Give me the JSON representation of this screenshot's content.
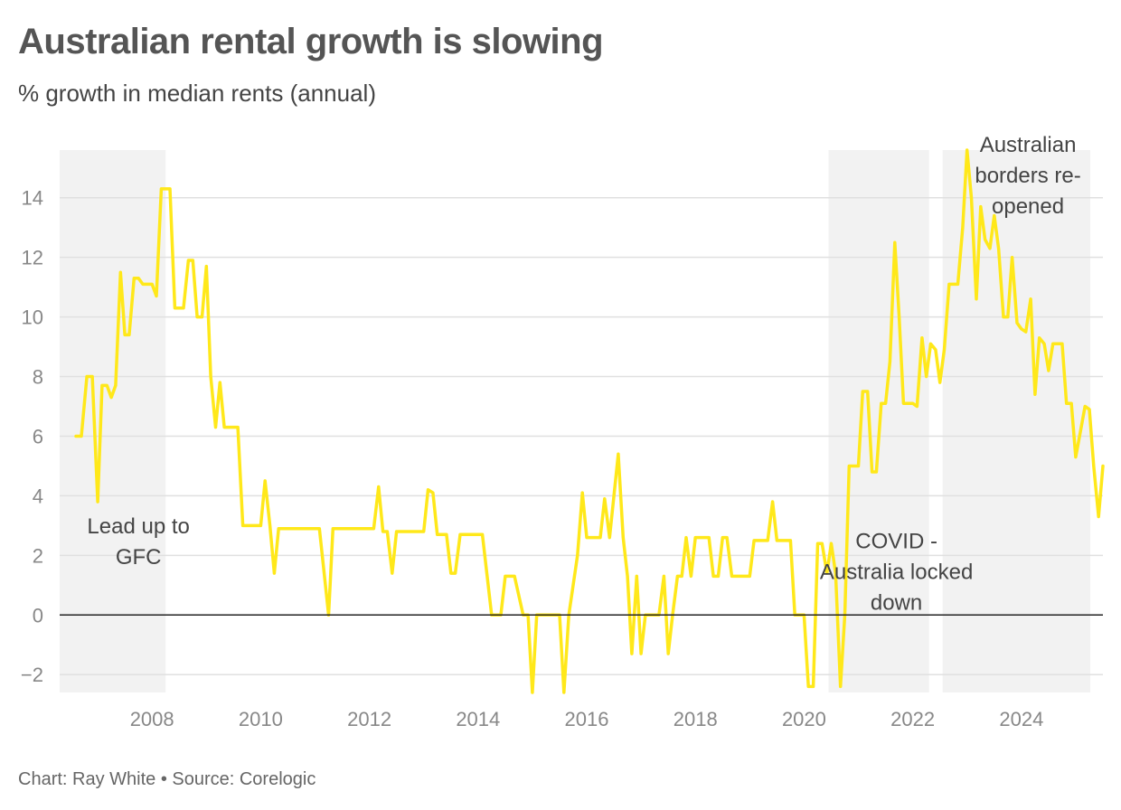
{
  "header": {
    "title": "Australian rental growth is slowing",
    "subtitle": "% growth in median rents (annual)"
  },
  "footer": {
    "credit": "Chart: Ray White • Source: Corelogic"
  },
  "colors": {
    "line": "#FFE81A",
    "band": "#F2F2F2",
    "grid": "#E0E0E0",
    "zero": "#222222"
  },
  "chart_data": {
    "type": "line",
    "title": "Australian rental growth is slowing",
    "subtitle": "% growth in median rents (annual)",
    "xlim": [
      2006.3,
      2025.3
    ],
    "ylim": [
      -2.6,
      15.6
    ],
    "xticks": [
      2008,
      2010,
      2012,
      2014,
      2016,
      2018,
      2020,
      2022,
      2024
    ],
    "yticks": [
      -2,
      0,
      2,
      4,
      6,
      8,
      10,
      12,
      14
    ],
    "grid": "horizontal",
    "bands": [
      {
        "x0": 2006.3,
        "x1": 2008.25,
        "label_lines": [
          "Lead up to",
          "GFC"
        ],
        "label_x": 2007.75,
        "label_y": 2.8,
        "label_anchor": "middle"
      },
      {
        "x0": 2020.45,
        "x1": 2022.3,
        "label_lines": [
          "COVID -",
          "Australia locked",
          "down"
        ],
        "label_x": 2021.7,
        "label_y": 2.3,
        "label_anchor": "middle"
      },
      {
        "x0": 2022.55,
        "x1": 2025.35,
        "label_lines": [
          "Australian",
          "borders re-",
          "opened"
        ],
        "label_x": 2024.12,
        "label_y": 15.6,
        "label_anchor": "middle"
      }
    ],
    "series": [
      {
        "values": [
          [
            2006.6,
            6.0
          ],
          [
            2006.7,
            6.0
          ],
          [
            2006.8,
            8.0
          ],
          [
            2006.9,
            8.0
          ],
          [
            2007.0,
            3.8
          ],
          [
            2007.08,
            7.7
          ],
          [
            2007.17,
            7.7
          ],
          [
            2007.25,
            7.3
          ],
          [
            2007.33,
            7.7
          ],
          [
            2007.42,
            11.5
          ],
          [
            2007.5,
            9.4
          ],
          [
            2007.58,
            9.4
          ],
          [
            2007.67,
            11.3
          ],
          [
            2007.75,
            11.3
          ],
          [
            2007.83,
            11.1
          ],
          [
            2007.92,
            11.1
          ],
          [
            2008.0,
            11.1
          ],
          [
            2008.08,
            10.7
          ],
          [
            2008.17,
            14.3
          ],
          [
            2008.25,
            14.3
          ],
          [
            2008.33,
            14.3
          ],
          [
            2008.42,
            10.3
          ],
          [
            2008.5,
            10.3
          ],
          [
            2008.58,
            10.3
          ],
          [
            2008.67,
            11.9
          ],
          [
            2008.75,
            11.9
          ],
          [
            2008.83,
            10.0
          ],
          [
            2008.92,
            10.0
          ],
          [
            2009.0,
            11.7
          ],
          [
            2009.08,
            8.0
          ],
          [
            2009.17,
            6.3
          ],
          [
            2009.25,
            7.8
          ],
          [
            2009.33,
            6.3
          ],
          [
            2009.42,
            6.3
          ],
          [
            2009.5,
            6.3
          ],
          [
            2009.58,
            6.3
          ],
          [
            2009.67,
            3.0
          ],
          [
            2009.75,
            3.0
          ],
          [
            2009.83,
            3.0
          ],
          [
            2009.92,
            3.0
          ],
          [
            2010.0,
            3.0
          ],
          [
            2010.08,
            4.5
          ],
          [
            2010.17,
            3.0
          ],
          [
            2010.25,
            1.4
          ],
          [
            2010.33,
            2.9
          ],
          [
            2010.5,
            2.9
          ],
          [
            2010.75,
            2.9
          ],
          [
            2011.0,
            2.9
          ],
          [
            2011.08,
            2.9
          ],
          [
            2011.25,
            0.0
          ],
          [
            2011.33,
            2.9
          ],
          [
            2011.5,
            2.9
          ],
          [
            2011.75,
            2.9
          ],
          [
            2012.0,
            2.9
          ],
          [
            2012.08,
            2.9
          ],
          [
            2012.17,
            4.3
          ],
          [
            2012.25,
            2.8
          ],
          [
            2012.33,
            2.8
          ],
          [
            2012.42,
            1.4
          ],
          [
            2012.5,
            2.8
          ],
          [
            2012.67,
            2.8
          ],
          [
            2012.83,
            2.8
          ],
          [
            2013.0,
            2.8
          ],
          [
            2013.08,
            4.2
          ],
          [
            2013.17,
            4.1
          ],
          [
            2013.25,
            2.7
          ],
          [
            2013.42,
            2.7
          ],
          [
            2013.5,
            1.4
          ],
          [
            2013.58,
            1.4
          ],
          [
            2013.67,
            2.7
          ],
          [
            2013.83,
            2.7
          ],
          [
            2014.0,
            2.7
          ],
          [
            2014.08,
            2.7
          ],
          [
            2014.25,
            0.0
          ],
          [
            2014.33,
            0.0
          ],
          [
            2014.42,
            0.0
          ],
          [
            2014.5,
            1.3
          ],
          [
            2014.58,
            1.3
          ],
          [
            2014.67,
            1.3
          ],
          [
            2014.83,
            0.0
          ],
          [
            2014.92,
            0.0
          ],
          [
            2015.0,
            -2.6
          ],
          [
            2015.08,
            0.0
          ],
          [
            2015.25,
            0.0
          ],
          [
            2015.42,
            0.0
          ],
          [
            2015.5,
            0.0
          ],
          [
            2015.58,
            -2.6
          ],
          [
            2015.67,
            0.0
          ],
          [
            2015.83,
            2.0
          ],
          [
            2015.92,
            4.1
          ],
          [
            2016.0,
            2.6
          ],
          [
            2016.08,
            2.6
          ],
          [
            2016.17,
            2.6
          ],
          [
            2016.25,
            2.6
          ],
          [
            2016.33,
            3.9
          ],
          [
            2016.42,
            2.6
          ],
          [
            2016.58,
            5.4
          ],
          [
            2016.67,
            2.6
          ],
          [
            2016.75,
            1.3
          ],
          [
            2016.83,
            -1.3
          ],
          [
            2016.92,
            1.3
          ],
          [
            2017.0,
            -1.3
          ],
          [
            2017.08,
            0.0
          ],
          [
            2017.17,
            0.0
          ],
          [
            2017.25,
            0.0
          ],
          [
            2017.33,
            0.0
          ],
          [
            2017.42,
            1.3
          ],
          [
            2017.5,
            -1.3
          ],
          [
            2017.58,
            0.0
          ],
          [
            2017.67,
            1.3
          ],
          [
            2017.75,
            1.3
          ],
          [
            2017.83,
            2.6
          ],
          [
            2017.92,
            1.3
          ],
          [
            2018.0,
            2.6
          ],
          [
            2018.08,
            2.6
          ],
          [
            2018.17,
            2.6
          ],
          [
            2018.25,
            2.6
          ],
          [
            2018.33,
            1.3
          ],
          [
            2018.42,
            1.3
          ],
          [
            2018.5,
            2.6
          ],
          [
            2018.58,
            2.6
          ],
          [
            2018.67,
            1.3
          ],
          [
            2018.75,
            1.3
          ],
          [
            2018.83,
            1.3
          ],
          [
            2018.92,
            1.3
          ],
          [
            2019.0,
            1.3
          ],
          [
            2019.08,
            2.5
          ],
          [
            2019.17,
            2.5
          ],
          [
            2019.25,
            2.5
          ],
          [
            2019.33,
            2.5
          ],
          [
            2019.42,
            3.8
          ],
          [
            2019.5,
            2.5
          ],
          [
            2019.58,
            2.5
          ],
          [
            2019.67,
            2.5
          ],
          [
            2019.75,
            2.5
          ],
          [
            2019.83,
            0.0
          ],
          [
            2019.92,
            0.0
          ],
          [
            2020.0,
            0.0
          ],
          [
            2020.08,
            -2.4
          ],
          [
            2020.17,
            -2.4
          ],
          [
            2020.25,
            2.4
          ],
          [
            2020.33,
            2.4
          ],
          [
            2020.42,
            1.4
          ],
          [
            2020.5,
            2.4
          ],
          [
            2020.58,
            1.4
          ],
          [
            2020.67,
            -2.4
          ],
          [
            2020.75,
            0.0
          ],
          [
            2020.83,
            5.0
          ],
          [
            2020.92,
            5.0
          ],
          [
            2021.0,
            5.0
          ],
          [
            2021.08,
            7.5
          ],
          [
            2021.17,
            7.5
          ],
          [
            2021.25,
            4.8
          ],
          [
            2021.33,
            4.8
          ],
          [
            2021.42,
            7.1
          ],
          [
            2021.5,
            7.1
          ],
          [
            2021.58,
            8.5
          ],
          [
            2021.67,
            12.5
          ],
          [
            2021.75,
            10.0
          ],
          [
            2021.83,
            7.1
          ],
          [
            2021.92,
            7.1
          ],
          [
            2022.0,
            7.1
          ],
          [
            2022.08,
            7.0
          ],
          [
            2022.17,
            9.3
          ],
          [
            2022.25,
            8.0
          ],
          [
            2022.33,
            9.1
          ],
          [
            2022.42,
            8.9
          ],
          [
            2022.5,
            7.8
          ],
          [
            2022.58,
            8.9
          ],
          [
            2022.67,
            11.1
          ],
          [
            2022.75,
            11.1
          ],
          [
            2022.83,
            11.1
          ],
          [
            2022.92,
            13.0
          ],
          [
            2023.0,
            15.6
          ],
          [
            2023.08,
            14.0
          ],
          [
            2023.17,
            10.6
          ],
          [
            2023.25,
            13.7
          ],
          [
            2023.33,
            12.6
          ],
          [
            2023.42,
            12.3
          ],
          [
            2023.5,
            13.4
          ],
          [
            2023.58,
            12.3
          ],
          [
            2023.67,
            10.0
          ],
          [
            2023.75,
            10.0
          ],
          [
            2023.83,
            12.0
          ],
          [
            2023.92,
            9.8
          ],
          [
            2024.0,
            9.6
          ],
          [
            2024.08,
            9.5
          ],
          [
            2024.17,
            10.6
          ],
          [
            2024.25,
            7.4
          ],
          [
            2024.33,
            9.3
          ],
          [
            2024.42,
            9.1
          ],
          [
            2024.5,
            8.2
          ],
          [
            2024.58,
            9.1
          ],
          [
            2024.67,
            9.1
          ],
          [
            2024.75,
            9.1
          ],
          [
            2024.83,
            7.1
          ],
          [
            2024.92,
            7.1
          ],
          [
            2025.0,
            5.3
          ],
          [
            2025.08,
            6.1
          ],
          [
            2025.17,
            7.0
          ],
          [
            2025.25,
            6.9
          ],
          [
            2025.33,
            5.0
          ],
          [
            2025.42,
            3.3
          ],
          [
            2025.5,
            5.0
          ]
        ]
      }
    ]
  }
}
